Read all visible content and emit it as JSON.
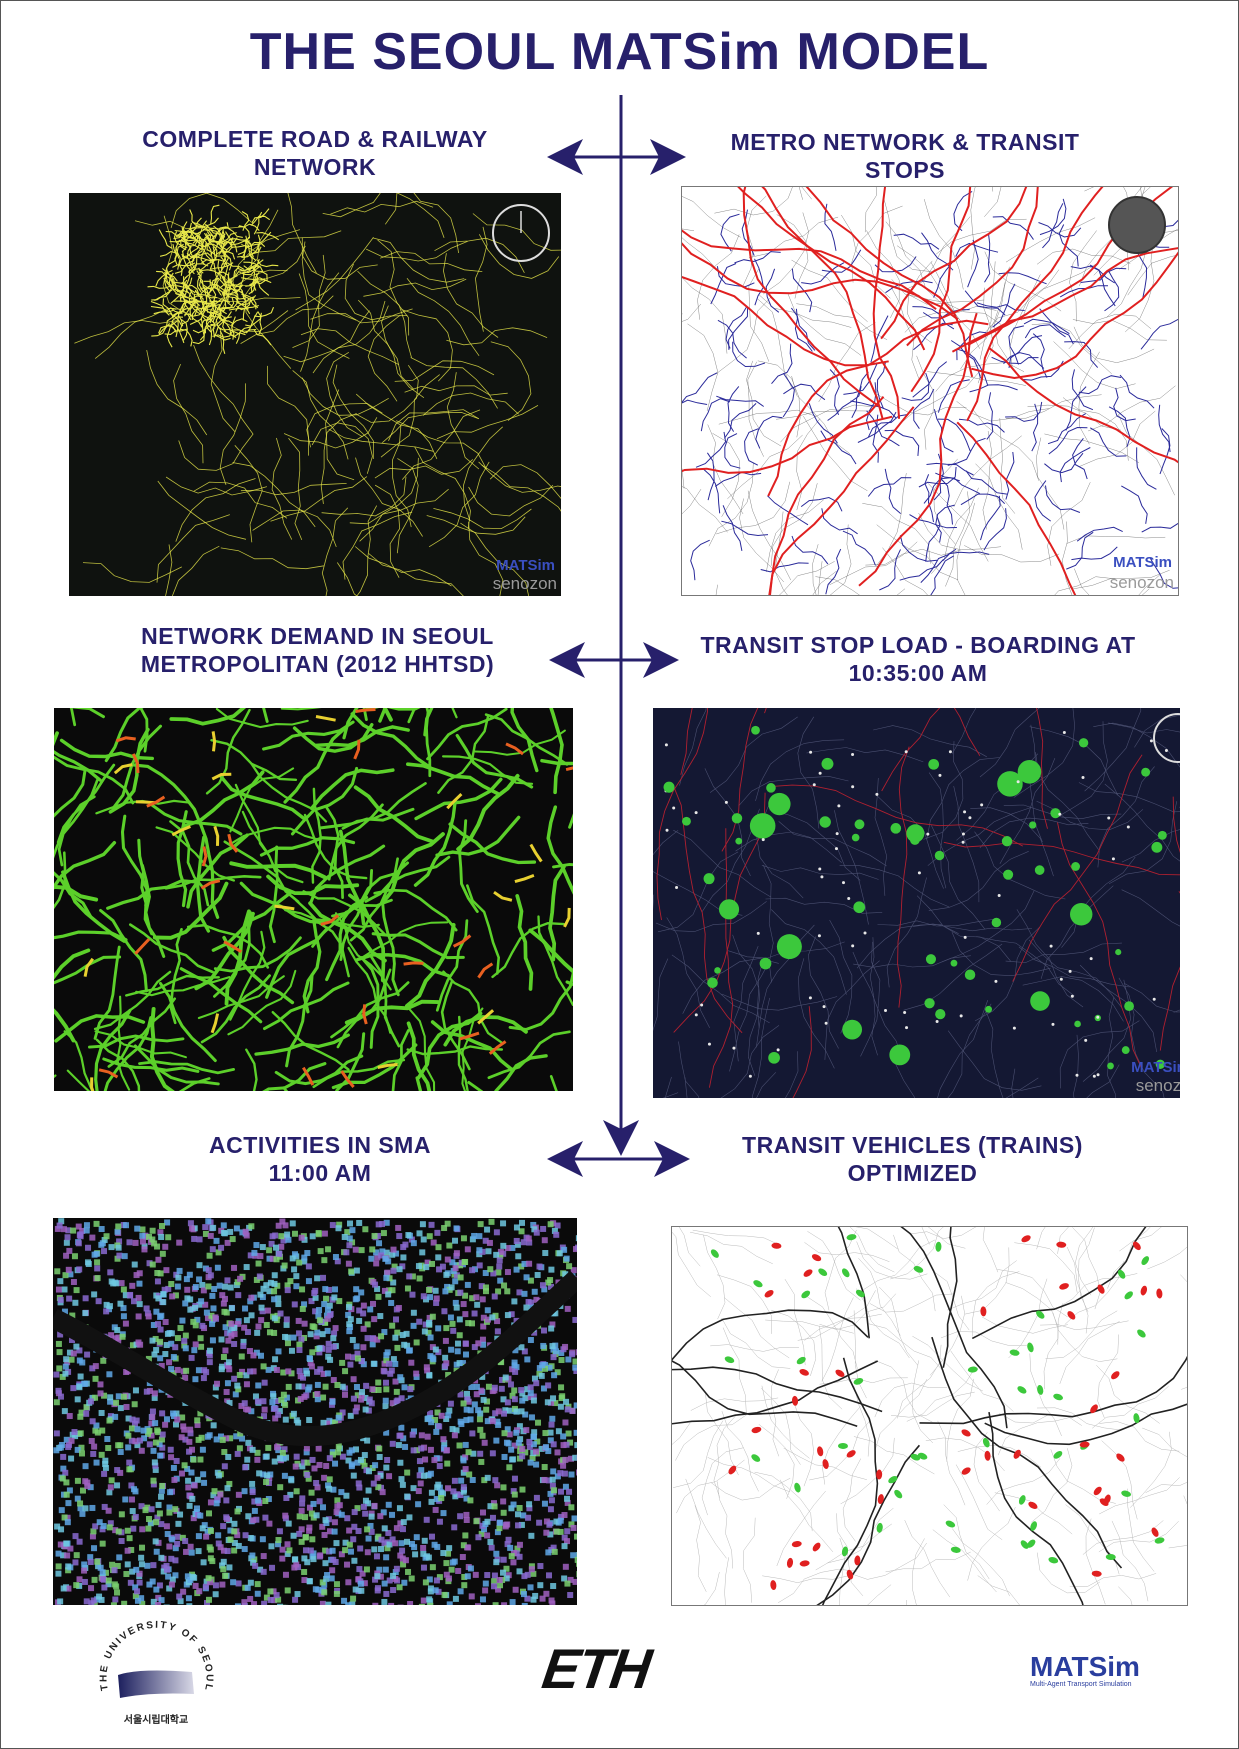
{
  "title": "THE SEOUL MATSim MODEL",
  "panels": [
    {
      "caption_l1": "COMPLETE ROAD & RAILWAY",
      "caption_l2": "NETWORK"
    },
    {
      "caption_l1": "METRO NETWORK & TRANSIT",
      "caption_l2": "STOPS"
    },
    {
      "caption_l1": "NETWORK DEMAND IN SEOUL",
      "caption_l2": "METROPOLITAN (2012 HHTSD)"
    },
    {
      "caption_l1": "TRANSIT STOP LOAD - BOARDING AT",
      "caption_l2": "10:35:00 AM"
    },
    {
      "caption_l1": "ACTIVITIES IN SMA",
      "caption_l2": "11:00 AM"
    },
    {
      "caption_l1": "TRANSIT VEHICLES (TRAINS)",
      "caption_l2": "OPTIMIZED"
    }
  ],
  "watermarks": {
    "matsim": "MATSim",
    "senozon": "senozon"
  },
  "logos": {
    "uos_arc": "THE UNIVERSITY OF SEOUL",
    "uos_korean": "서울시립대학교",
    "eth": "ETH",
    "matsim": "MATSim",
    "matsim_sub": "Multi-Agent Transport Simulation"
  },
  "colors": {
    "title": "#27206b",
    "road": "#e8e84a",
    "metro": "#e02020",
    "bus": "#2a2a9a",
    "load": "#3cc83c"
  }
}
